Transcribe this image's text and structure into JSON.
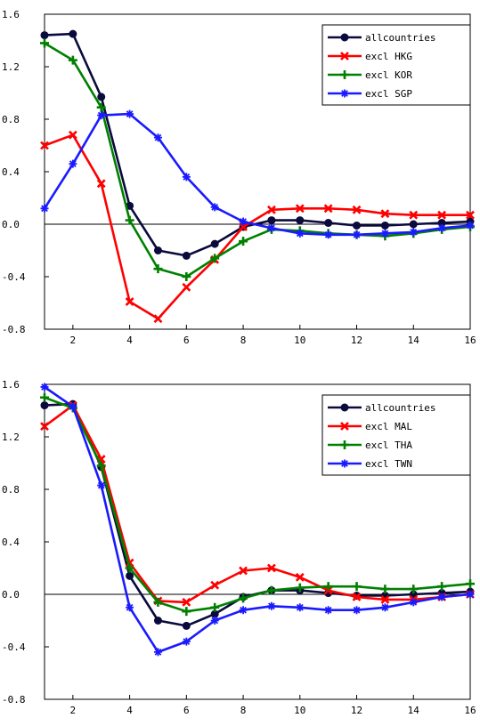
{
  "chart_data": [
    {
      "type": "line",
      "x": [
        1,
        2,
        3,
        4,
        5,
        6,
        7,
        8,
        9,
        10,
        11,
        12,
        13,
        14,
        15,
        16
      ],
      "xlim": [
        1,
        16
      ],
      "ylim": [
        -0.8,
        1.6
      ],
      "xticks": [
        2,
        4,
        6,
        8,
        10,
        12,
        14,
        16
      ],
      "xtick_labels": [
        "2",
        "4",
        "6",
        "8",
        "10",
        "12",
        "14",
        "16"
      ],
      "yticks": [
        -0.8,
        -0.4,
        0.0,
        0.4,
        0.8,
        1.2,
        1.6
      ],
      "ytick_labels": [
        "-0.8",
        "-0.4",
        "0.0",
        "0.4",
        "0.8",
        "1.2",
        "1.6"
      ],
      "zero_line": true,
      "grid": false,
      "legend_position": "top-right",
      "series": [
        {
          "name": "allcountries",
          "color": "#0a0a3c",
          "marker": "circle",
          "values": [
            1.44,
            1.45,
            0.97,
            0.14,
            -0.2,
            -0.24,
            -0.15,
            -0.02,
            0.03,
            0.03,
            0.01,
            -0.01,
            -0.01,
            0.0,
            0.01,
            0.02
          ]
        },
        {
          "name": "excl HKG",
          "color": "#ff0000",
          "marker": "x",
          "values": [
            0.6,
            0.68,
            0.31,
            -0.59,
            -0.72,
            -0.48,
            -0.27,
            -0.02,
            0.11,
            0.12,
            0.12,
            0.11,
            0.08,
            0.07,
            0.07,
            0.07
          ]
        },
        {
          "name": "excl KOR",
          "color": "#008000",
          "marker": "plus",
          "values": [
            1.38,
            1.25,
            0.89,
            0.03,
            -0.34,
            -0.4,
            -0.26,
            -0.13,
            -0.04,
            -0.05,
            -0.07,
            -0.08,
            -0.09,
            -0.07,
            -0.04,
            -0.02
          ]
        },
        {
          "name": "excl SGP",
          "color": "#1a1aff",
          "marker": "star",
          "values": [
            0.12,
            0.46,
            0.83,
            0.84,
            0.66,
            0.36,
            0.13,
            0.02,
            -0.03,
            -0.07,
            -0.08,
            -0.08,
            -0.07,
            -0.06,
            -0.03,
            -0.01
          ]
        }
      ]
    },
    {
      "type": "line",
      "x": [
        1,
        2,
        3,
        4,
        5,
        6,
        7,
        8,
        9,
        10,
        11,
        12,
        13,
        14,
        15,
        16
      ],
      "xlim": [
        1,
        16
      ],
      "ylim": [
        -0.8,
        1.6
      ],
      "xticks": [
        2,
        4,
        6,
        8,
        10,
        12,
        14,
        16
      ],
      "xtick_labels": [
        "2",
        "4",
        "6",
        "8",
        "10",
        "12",
        "14",
        "16"
      ],
      "yticks": [
        -0.8,
        -0.4,
        0.0,
        0.4,
        0.8,
        1.2,
        1.6
      ],
      "ytick_labels": [
        "-0.8",
        "-0.4",
        "0.0",
        "0.4",
        "0.8",
        "1.2",
        "1.6"
      ],
      "zero_line": true,
      "grid": false,
      "legend_position": "top-right",
      "series": [
        {
          "name": "allcountries",
          "color": "#0a0a3c",
          "marker": "circle",
          "values": [
            1.44,
            1.45,
            0.97,
            0.14,
            -0.2,
            -0.24,
            -0.15,
            -0.02,
            0.03,
            0.03,
            0.01,
            -0.01,
            -0.01,
            0.0,
            0.01,
            0.02
          ]
        },
        {
          "name": "excl MAL",
          "color": "#ff0000",
          "marker": "x",
          "values": [
            1.28,
            1.44,
            1.03,
            0.24,
            -0.05,
            -0.06,
            0.07,
            0.18,
            0.2,
            0.13,
            0.03,
            -0.02,
            -0.04,
            -0.04,
            -0.02,
            0.0
          ]
        },
        {
          "name": "excl THA",
          "color": "#008000",
          "marker": "plus",
          "values": [
            1.5,
            1.42,
            0.98,
            0.2,
            -0.06,
            -0.13,
            -0.1,
            -0.03,
            0.03,
            0.05,
            0.06,
            0.06,
            0.04,
            0.04,
            0.06,
            0.08
          ]
        },
        {
          "name": "excl TWN",
          "color": "#1a1aff",
          "marker": "star",
          "values": [
            1.58,
            1.43,
            0.83,
            -0.1,
            -0.44,
            -0.36,
            -0.2,
            -0.12,
            -0.09,
            -0.1,
            -0.12,
            -0.12,
            -0.1,
            -0.06,
            -0.02,
            0.0
          ]
        }
      ]
    }
  ]
}
